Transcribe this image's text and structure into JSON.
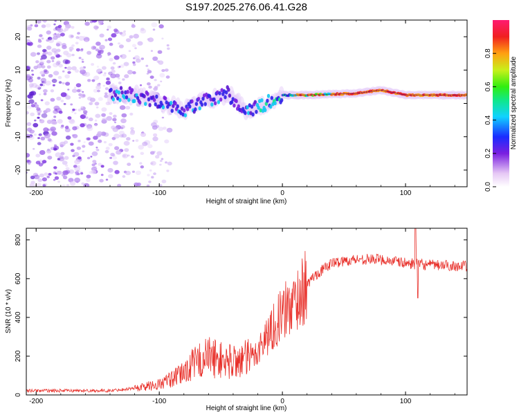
{
  "title": "S197.2025.276.06.41.G28",
  "chart_data": [
    {
      "type": "heatmap",
      "xlabel": "Height of straight line (km)",
      "ylabel": "Frequency (Hz)",
      "xlim": [
        -208,
        150
      ],
      "ylim": [
        -25,
        25
      ],
      "xticks": [
        -200,
        -100,
        0,
        100
      ],
      "yticks": [
        20,
        10,
        0,
        -10,
        -20
      ],
      "colorbar": {
        "label": "Normalized spectral amplitude",
        "range": [
          0,
          1
        ],
        "ticks": [
          0.0,
          0.2,
          0.4,
          0.6,
          0.8
        ]
      },
      "ridge_frequency_hz": [
        {
          "x": -140,
          "y": 2.8
        },
        {
          "x": -120,
          "y": 2.5
        },
        {
          "x": -100,
          "y": 0.5
        },
        {
          "x": -80,
          "y": -2.0
        },
        {
          "x": -60,
          "y": 1.0
        },
        {
          "x": -45,
          "y": 3.0
        },
        {
          "x": -30,
          "y": -2.0
        },
        {
          "x": -20,
          "y": -1.5
        },
        {
          "x": -10,
          "y": 0.5
        },
        {
          "x": 0,
          "y": 2.5
        },
        {
          "x": 20,
          "y": 2.5
        },
        {
          "x": 60,
          "y": 3.0
        },
        {
          "x": 80,
          "y": 4.0
        },
        {
          "x": 100,
          "y": 2.5
        },
        {
          "x": 150,
          "y": 2.5
        }
      ],
      "noise_region_x": [
        -208,
        -100
      ]
    },
    {
      "type": "line",
      "xlabel": "Height of straight line (km)",
      "ylabel": "SNR (10 * v/v)",
      "xlim": [
        -208,
        150
      ],
      "ylim": [
        0,
        860
      ],
      "xticks": [
        -200,
        -100,
        0,
        100
      ],
      "yticks": [
        0,
        200,
        400,
        600,
        800
      ],
      "series": [
        {
          "name": "SNR",
          "color": "#e8302a",
          "envelope": [
            {
              "x": -208,
              "y": 22
            },
            {
              "x": -140,
              "y": 22
            },
            {
              "x": -120,
              "y": 35
            },
            {
              "x": -100,
              "y": 55
            },
            {
              "x": -85,
              "y": 95
            },
            {
              "x": -70,
              "y": 170
            },
            {
              "x": -60,
              "y": 200
            },
            {
              "x": -45,
              "y": 170
            },
            {
              "x": -25,
              "y": 190
            },
            {
              "x": -20,
              "y": 230
            },
            {
              "x": -10,
              "y": 330
            },
            {
              "x": 0,
              "y": 420
            },
            {
              "x": 10,
              "y": 480
            },
            {
              "x": 25,
              "y": 610
            },
            {
              "x": 40,
              "y": 680
            },
            {
              "x": 60,
              "y": 700
            },
            {
              "x": 80,
              "y": 700
            },
            {
              "x": 100,
              "y": 680
            },
            {
              "x": 120,
              "y": 670
            },
            {
              "x": 150,
              "y": 665
            }
          ],
          "features": [
            {
              "x": 108,
              "y": 860,
              "label": "spike max"
            },
            {
              "x": 110,
              "y": 500,
              "label": "spike min"
            }
          ]
        }
      ]
    }
  ]
}
